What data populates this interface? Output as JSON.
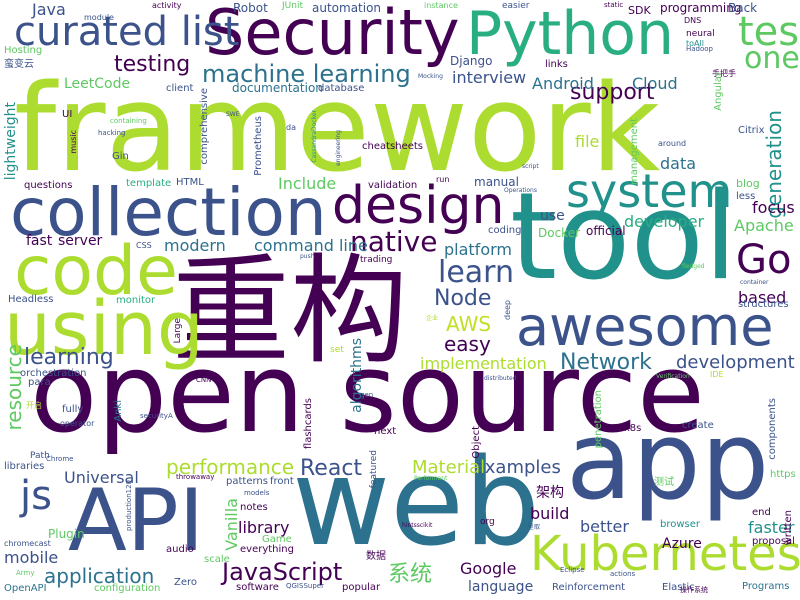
{
  "colors": {
    "purple": "#440154",
    "indigo": "#3b528b",
    "blue": "#2c728e",
    "teal": "#21918c",
    "green": "#28ae80",
    "lime": "#5ec962",
    "yellowgreen": "#addc30",
    "yellow": "#c2df23"
  },
  "words": [
    {
      "text": "framework",
      "color": "#addc30"
    },
    {
      "text": "open source",
      "color": "#440154"
    },
    {
      "text": "tool",
      "color": "#21918c"
    },
    {
      "text": "重构",
      "color": "#440154"
    },
    {
      "text": "web",
      "color": "#2c728e"
    },
    {
      "text": "app",
      "color": "#3b528b"
    },
    {
      "text": "API",
      "color": "#3b528b"
    },
    {
      "text": "collection",
      "color": "#3b528b"
    },
    {
      "text": "code",
      "color": "#addc30"
    },
    {
      "text": "using",
      "color": "#addc30"
    },
    {
      "text": "Security",
      "color": "#440154"
    },
    {
      "text": "Python",
      "color": "#28ae80"
    },
    {
      "text": "awesome",
      "color": "#3b528b"
    },
    {
      "text": "Kubernetes",
      "color": "#addc30"
    },
    {
      "text": "design",
      "color": "#440154"
    },
    {
      "text": "system",
      "color": "#21918c"
    },
    {
      "text": "curated list",
      "color": "#3b528b"
    },
    {
      "text": "test",
      "color": "#5ec962"
    },
    {
      "text": "one",
      "color": "#5ec962"
    },
    {
      "text": "Go",
      "color": "#440154"
    },
    {
      "text": "js",
      "color": "#3b528b"
    },
    {
      "text": "learn",
      "color": "#3b528b"
    },
    {
      "text": "native",
      "color": "#440154"
    },
    {
      "text": "machine learning",
      "color": "#2c728e"
    },
    {
      "text": "testing",
      "color": "#440154"
    },
    {
      "text": "support",
      "color": "#440154"
    },
    {
      "text": "Network",
      "color": "#2c728e"
    },
    {
      "text": "Node",
      "color": "#3b528b"
    },
    {
      "text": "React",
      "color": "#3b528b"
    },
    {
      "text": "JavaScript",
      "color": "#440154"
    },
    {
      "text": "AWS",
      "color": "#c2df23"
    },
    {
      "text": "easy",
      "color": "#440154"
    },
    {
      "text": "performance",
      "color": "#addc30"
    },
    {
      "text": "application",
      "color": "#2c728e"
    },
    {
      "text": "generation",
      "color": "#21918c"
    },
    {
      "text": "resource",
      "color": "#5ec962"
    },
    {
      "text": "development",
      "color": "#3b528b"
    },
    {
      "text": "learning",
      "color": "#3b528b"
    },
    {
      "text": "examples",
      "color": "#3b528b"
    },
    {
      "text": "Material",
      "color": "#addc30"
    },
    {
      "text": "系统",
      "color": "#5ec962"
    },
    {
      "text": "Google",
      "color": "#440154"
    },
    {
      "text": "implementation",
      "color": "#addc30"
    },
    {
      "text": "algorithms",
      "color": "#2c728e"
    },
    {
      "text": "command line",
      "color": "#2c728e"
    },
    {
      "text": "interview",
      "color": "#3b528b"
    },
    {
      "text": "Android",
      "color": "#2c728e"
    },
    {
      "text": "Cloud",
      "color": "#2c728e"
    },
    {
      "text": "modern",
      "color": "#2c728e"
    },
    {
      "text": "platform",
      "color": "#2c728e"
    },
    {
      "text": "data",
      "color": "#2c728e"
    },
    {
      "text": "focus",
      "color": "#440154"
    },
    {
      "text": "Apache",
      "color": "#5ec962"
    },
    {
      "text": "developer",
      "color": "#28ae80"
    },
    {
      "text": "file",
      "color": "#addc30"
    },
    {
      "text": "Universal",
      "color": "#3b528b"
    },
    {
      "text": "build",
      "color": "#440154"
    },
    {
      "text": "better",
      "color": "#3b528b"
    },
    {
      "text": "faster",
      "color": "#21918c"
    },
    {
      "text": "mobile",
      "color": "#3b528b"
    },
    {
      "text": "library",
      "color": "#440154"
    },
    {
      "text": "Vanilla",
      "color": "#5ec962"
    },
    {
      "text": "Azure",
      "color": "#440154"
    },
    {
      "text": "language",
      "color": "#3b528b"
    },
    {
      "text": "based",
      "color": "#440154"
    },
    {
      "text": "Java",
      "color": "#3b528b"
    },
    {
      "text": "Include",
      "color": "#5ec962"
    },
    {
      "text": "server",
      "color": "#440154"
    },
    {
      "text": "fast",
      "color": "#440154"
    },
    {
      "text": "lightweight",
      "color": "#21918c"
    },
    {
      "text": "LeetCode",
      "color": "#5ec962"
    },
    {
      "text": "架构",
      "color": "#440154"
    },
    {
      "text": "use",
      "color": "#3b528b"
    },
    {
      "text": "Docker",
      "color": "#5ec962"
    },
    {
      "text": "official",
      "color": "#440154"
    },
    {
      "text": "Robot",
      "color": "#3b528b"
    },
    {
      "text": "automation",
      "color": "#3b528b"
    },
    {
      "text": "programming",
      "color": "#440154"
    },
    {
      "text": "Back",
      "color": "#3b528b"
    },
    {
      "text": "SDK",
      "color": "#440154"
    },
    {
      "text": "Django",
      "color": "#3b528b"
    },
    {
      "text": "documentation",
      "color": "#2c728e"
    },
    {
      "text": "database",
      "color": "#3b528b"
    },
    {
      "text": "client",
      "color": "#3b528b"
    },
    {
      "text": "comprehensive",
      "color": "#3b528b"
    },
    {
      "text": "Prometheus",
      "color": "#3b528b"
    },
    {
      "text": "cheatsheets",
      "color": "#440154"
    },
    {
      "text": "questions",
      "color": "#440154"
    },
    {
      "text": "template",
      "color": "#28ae80"
    },
    {
      "text": "HTML",
      "color": "#3b528b"
    },
    {
      "text": "validation",
      "color": "#440154"
    },
    {
      "text": "manual",
      "color": "#3b528b"
    },
    {
      "text": "blog",
      "color": "#5ec962"
    },
    {
      "text": "less",
      "color": "#3b528b"
    },
    {
      "text": "management",
      "color": "#5ec962"
    },
    {
      "text": "Citrix",
      "color": "#3b528b"
    },
    {
      "text": "Headless",
      "color": "#3b528b"
    },
    {
      "text": "monitor",
      "color": "#28ae80"
    },
    {
      "text": "orchestration",
      "color": "#3b528b"
    },
    {
      "text": "para",
      "color": "#3b528b"
    },
    {
      "text": "flashcards",
      "color": "#440154"
    },
    {
      "text": "Anki",
      "color": "#2c728e"
    },
    {
      "text": "fully",
      "color": "#3b528b"
    },
    {
      "text": "operator",
      "color": "#3b528b"
    },
    {
      "text": "libraries",
      "color": "#3b528b"
    },
    {
      "text": "Path",
      "color": "#3b528b"
    },
    {
      "text": "next",
      "color": "#440154"
    },
    {
      "text": "Object",
      "color": "#440154"
    },
    {
      "text": "k8s",
      "color": "#440154"
    },
    {
      "text": "create",
      "color": "#3b528b"
    },
    {
      "text": "components",
      "color": "#3b528b"
    },
    {
      "text": "https",
      "color": "#5ec962"
    },
    {
      "text": "end",
      "color": "#440154"
    },
    {
      "text": "written",
      "color": "#440154"
    },
    {
      "text": "proposal",
      "color": "#440154"
    },
    {
      "text": "browser",
      "color": "#21918c"
    },
    {
      "text": "Elastic",
      "color": "#3b528b"
    },
    {
      "text": "Programs",
      "color": "#2c728e"
    },
    {
      "text": "Reinforcement",
      "color": "#3b528b"
    },
    {
      "text": "popular",
      "color": "#440154"
    },
    {
      "text": "software",
      "color": "#440154"
    },
    {
      "text": "configuration",
      "color": "#5ec962"
    },
    {
      "text": "OpenAPI",
      "color": "#2c728e"
    },
    {
      "text": "Zero",
      "color": "#3b528b"
    },
    {
      "text": "scale",
      "color": "#5ec962"
    },
    {
      "text": "audio",
      "color": "#440154"
    },
    {
      "text": "Game",
      "color": "#5ec962"
    },
    {
      "text": "everything",
      "color": "#440154"
    },
    {
      "text": "notes",
      "color": "#440154"
    },
    {
      "text": "patterns",
      "color": "#3b528b"
    },
    {
      "text": "front",
      "color": "#3b528b"
    },
    {
      "text": "Plugin",
      "color": "#5ec962"
    },
    {
      "text": "chromecast",
      "color": "#3b528b"
    },
    {
      "text": "Hosting",
      "color": "#5ec962"
    },
    {
      "text": "蛮变云",
      "color": "#3b528b"
    },
    {
      "text": "module",
      "color": "#3b528b"
    },
    {
      "text": "activity",
      "color": "#440154"
    },
    {
      "text": "JUnit",
      "color": "#5ec962"
    },
    {
      "text": "instance",
      "color": "#5ec962"
    },
    {
      "text": "easier",
      "color": "#3b528b"
    },
    {
      "text": "static",
      "color": "#440154"
    },
    {
      "text": "DNS",
      "color": "#440154"
    },
    {
      "text": "neural",
      "color": "#440154"
    },
    {
      "text": "toAll",
      "color": "#21918c"
    },
    {
      "text": "Hadoop",
      "color": "#3b528b"
    },
    {
      "text": "手把手",
      "color": "#440154"
    },
    {
      "text": "Angular",
      "color": "#5ec962"
    },
    {
      "text": "around",
      "color": "#3b528b"
    },
    {
      "text": "Mocking",
      "color": "#3b528b"
    },
    {
      "text": "links",
      "color": "#440154"
    },
    {
      "text": "UI",
      "color": "#440154"
    },
    {
      "text": "containing",
      "color": "#5ec962"
    },
    {
      "text": "hacking",
      "color": "#3b528b"
    },
    {
      "text": "music",
      "color": "#440154"
    },
    {
      "text": "Gin",
      "color": "#3b528b"
    },
    {
      "text": "da",
      "color": "#3b528b"
    },
    {
      "text": "SWE",
      "color": "#3b528b"
    },
    {
      "text": "CassandraDocker",
      "color": "#21918c"
    },
    {
      "text": "engineering",
      "color": "#3b528b"
    },
    {
      "text": "run",
      "color": "#440154"
    },
    {
      "text": "script",
      "color": "#3b528b"
    },
    {
      "text": "Operations",
      "color": "#3b528b"
    },
    {
      "text": "coding",
      "color": "#3b528b"
    },
    {
      "text": "CSS",
      "color": "#3b528b"
    },
    {
      "text": "push",
      "color": "#3b528b"
    },
    {
      "text": "trading",
      "color": "#440154"
    },
    {
      "text": "fledged",
      "color": "#5ec962"
    },
    {
      "text": "container",
      "color": "#3b528b"
    },
    {
      "text": "structures",
      "color": "#3b528b"
    },
    {
      "text": "Large",
      "color": "#440154"
    },
    {
      "text": "企业",
      "color": "#addc30"
    },
    {
      "text": "deep",
      "color": "#3b528b"
    },
    {
      "text": "set",
      "color": "#addc30"
    },
    {
      "text": "CNN",
      "color": "#440154"
    },
    {
      "text": "gen",
      "color": "#3b528b"
    },
    {
      "text": "开启",
      "color": "#addc30"
    },
    {
      "text": "securityA",
      "color": "#3b528b"
    },
    {
      "text": "distributed",
      "color": "#3b528b"
    },
    {
      "text": "penetration",
      "color": "#5ec962"
    },
    {
      "text": "running",
      "color": "#440154"
    },
    {
      "text": "IDE",
      "color": "#addc30"
    },
    {
      "text": "Verification",
      "color": "#5ec962"
    },
    {
      "text": "Chrome",
      "color": "#3b528b"
    },
    {
      "text": "throwaway",
      "color": "#440154"
    },
    {
      "text": "Performant",
      "color": "#5ec962"
    },
    {
      "text": "featured",
      "color": "#3b528b"
    },
    {
      "text": "测试",
      "color": "#5ec962"
    },
    {
      "text": "models",
      "color": "#3b528b"
    },
    {
      "text": "production120",
      "color": "#3b528b"
    },
    {
      "text": "hintsscikit",
      "color": "#440154"
    },
    {
      "text": "org",
      "color": "#440154"
    },
    {
      "text": "呈取",
      "color": "#3b528b"
    },
    {
      "text": "Eclipse",
      "color": "#3b528b"
    },
    {
      "text": "actions",
      "color": "#3b528b"
    },
    {
      "text": "Army",
      "color": "#5ec962"
    },
    {
      "text": "QGISSuper",
      "color": "#3b528b"
    },
    {
      "text": "数据",
      "color": "#440154"
    },
    {
      "text": "操作系统",
      "color": "#440154"
    }
  ]
}
